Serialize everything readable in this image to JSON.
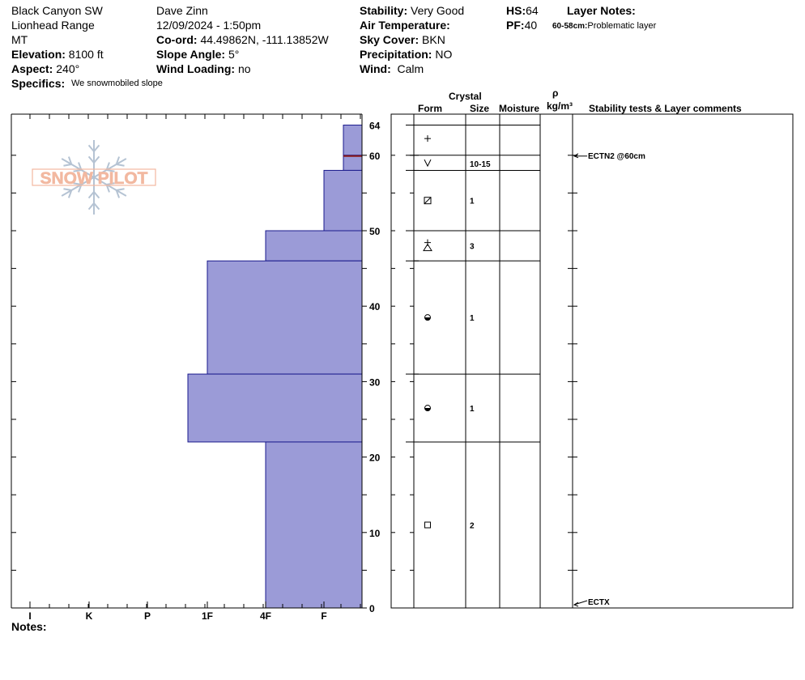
{
  "header": {
    "location": "Black Canyon SW",
    "range": "Lionhead Range",
    "state": "MT",
    "elevation_label": "Elevation:",
    "elevation_value": "8100 ft",
    "aspect_label": "Aspect:",
    "aspect_value": "240°",
    "specifics_label": "Specifics:",
    "specifics_value": "We snowmobiled slope",
    "observer": "Dave Zinn",
    "datetime": "12/09/2024 - 1:50pm",
    "coord_label": "Co-ord:",
    "coord_value": "44.49862N, -111.13852W",
    "slope_label": "Slope Angle:",
    "slope_value": "5°",
    "wind_loading_label": "Wind Loading:",
    "wind_loading_value": "no",
    "stability_label": "Stability:",
    "stability_value": "Very Good",
    "air_temp_label": "Air Temperature:",
    "air_temp_value": "",
    "sky_label": "Sky Cover:",
    "sky_value": "BKN",
    "precip_label": "Precipitation:",
    "precip_value": "NO",
    "wind_label": "Wind:",
    "wind_value": "Calm",
    "hs_label": "HS:",
    "hs_value": "64",
    "pf_label": "PF:",
    "pf_value": "40",
    "layer_notes_label": "Layer Notes:",
    "layer_note_range": "60-58cm:",
    "layer_note_text": "Problematic layer"
  },
  "columns": {
    "crystal": "Crystal",
    "form": "Form",
    "size": "Size",
    "moisture": "Moisture",
    "rho": "ρ",
    "density_unit": "kg/m³",
    "stability": "Stability tests & Layer comments"
  },
  "logo_text": "SNOW PILOT",
  "notes_label": "Notes:",
  "colors": {
    "layer_fill": "#9b9bd7",
    "layer_stroke": "#1a1a8c",
    "weak_layer_line": "#8b1a1a",
    "logo": "#f2b8a0",
    "logo_flake": "#b5c3d3"
  },
  "chart_data": {
    "type": "snow-profile",
    "y_axis": {
      "min": 0,
      "max": 64,
      "unit": "cm",
      "ticks": [
        0,
        10,
        20,
        30,
        40,
        50,
        60,
        64
      ]
    },
    "hardness_scale": [
      "I",
      "K",
      "P",
      "1F",
      "4F",
      "F"
    ],
    "layers": [
      {
        "top": 64,
        "bottom": 60,
        "hardness": "F+",
        "form": "plus",
        "size": "",
        "moisture": ""
      },
      {
        "top": 60,
        "bottom": 58,
        "hardness": "F+",
        "form": "v",
        "size": "10-15",
        "moisture": ""
      },
      {
        "top": 58,
        "bottom": 50,
        "hardness": "F",
        "form": "boxslash",
        "size": "1",
        "moisture": ""
      },
      {
        "top": 50,
        "bottom": 46,
        "hardness": "4F",
        "form": "mixed",
        "size": "3",
        "moisture": ""
      },
      {
        "top": 46,
        "bottom": 31,
        "hardness": "1F-",
        "form": "rounded",
        "size": "1",
        "moisture": ""
      },
      {
        "top": 31,
        "bottom": 22,
        "hardness": "1F--",
        "form": "rounded",
        "size": "1",
        "moisture": ""
      },
      {
        "top": 22,
        "bottom": 0,
        "hardness": "4F",
        "form": "square",
        "size": "2",
        "moisture": ""
      }
    ],
    "weak_layer_depth": 60,
    "stability_tests": [
      {
        "depth": 60,
        "text": "ECTN2 @60cm"
      },
      {
        "depth": 0,
        "text": "ECTX"
      }
    ]
  }
}
